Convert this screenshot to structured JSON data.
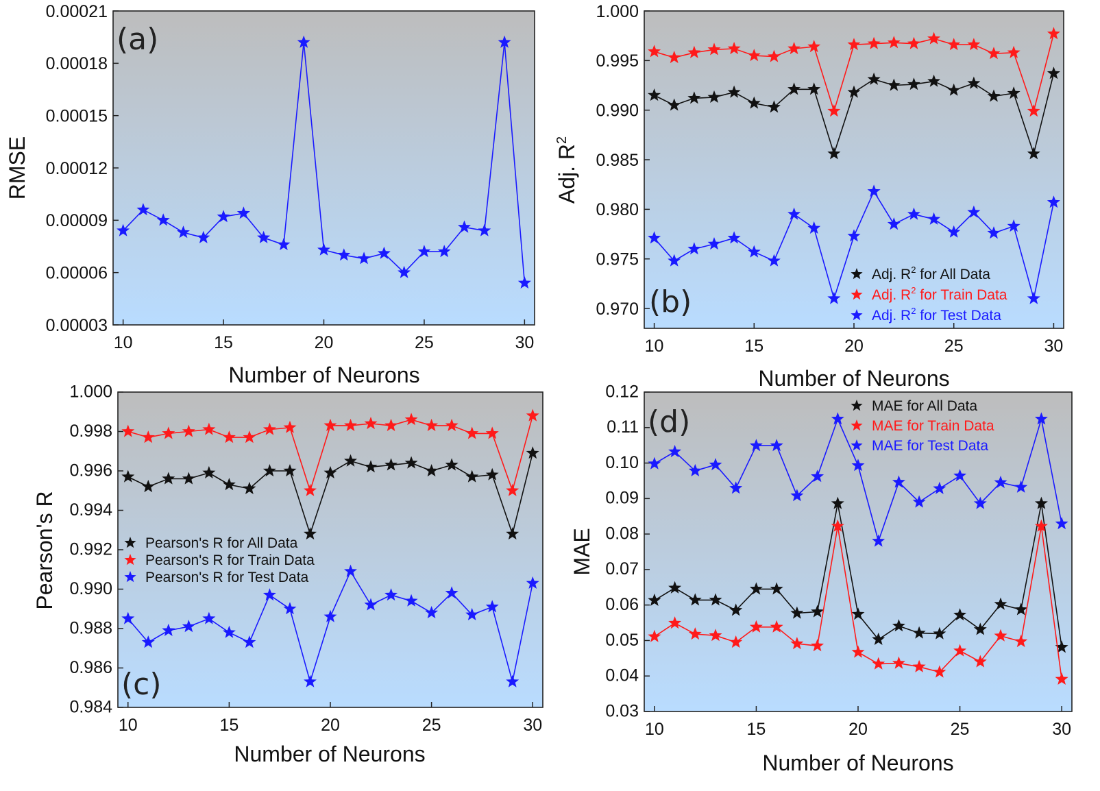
{
  "chart_data": [
    {
      "panel": "(a)",
      "type": "line",
      "xlabel": "Number of Neurons",
      "ylabel": "RMSE",
      "xlim": [
        9.5,
        30.5
      ],
      "ylim": [
        3e-05,
        0.00021
      ],
      "xticks": [
        10,
        15,
        20,
        25,
        30
      ],
      "xtick_labels": [
        "10",
        "15",
        "20",
        "25",
        "30"
      ],
      "yticks": [
        3e-05,
        6e-05,
        9e-05,
        0.00012,
        0.00015,
        0.00018,
        0.00021
      ],
      "ytick_labels": [
        "0.00003",
        "0.00006",
        "0.00009",
        "0.00012",
        "0.00015",
        "0.00018",
        "0.00021"
      ],
      "x": [
        10,
        11,
        12,
        13,
        14,
        15,
        16,
        17,
        18,
        19,
        20,
        21,
        22,
        23,
        24,
        25,
        26,
        27,
        28,
        29,
        30
      ],
      "series": [
        {
          "name": "RMSE",
          "color": "#1a1aff",
          "values": [
            8.4e-05,
            9.6e-05,
            9e-05,
            8.3e-05,
            8e-05,
            9.2e-05,
            9.4e-05,
            8e-05,
            7.6e-05,
            0.000192,
            7.3e-05,
            7e-05,
            6.8e-05,
            7.1e-05,
            6e-05,
            7.2e-05,
            7.2e-05,
            8.6e-05,
            8.4e-05,
            0.000192,
            5.4e-05
          ]
        }
      ],
      "legend": []
    },
    {
      "panel": "(b)",
      "type": "line",
      "xlabel": "Number of Neurons",
      "ylabel": "Adj. R",
      "ylabel_sup": "2",
      "xlim": [
        9.5,
        30.5
      ],
      "ylim": [
        0.968,
        1.0
      ],
      "xticks": [
        10,
        15,
        20,
        25,
        30
      ],
      "xtick_labels": [
        "10",
        "15",
        "20",
        "25",
        "30"
      ],
      "yticks": [
        0.97,
        0.975,
        0.98,
        0.985,
        0.99,
        0.995,
        1.0
      ],
      "ytick_labels": [
        "0.970",
        "0.975",
        "0.980",
        "0.985",
        "0.990",
        "0.995",
        "1.000"
      ],
      "x": [
        10,
        11,
        12,
        13,
        14,
        15,
        16,
        17,
        18,
        19,
        20,
        21,
        22,
        23,
        24,
        25,
        26,
        27,
        28,
        29,
        30
      ],
      "series": [
        {
          "name": "Adj. R² for All Data",
          "color": "#111111",
          "values": [
            0.9915,
            0.9905,
            0.9912,
            0.9913,
            0.9918,
            0.9907,
            0.9903,
            0.9921,
            0.9921,
            0.9856,
            0.9918,
            0.9931,
            0.9925,
            0.9926,
            0.9929,
            0.992,
            0.9927,
            0.9914,
            0.9917,
            0.9856,
            0.9937
          ]
        },
        {
          "name": "Adj. R² for Train Data",
          "color": "#ff1a1a",
          "values": [
            0.9959,
            0.9953,
            0.9958,
            0.9961,
            0.9962,
            0.9955,
            0.9954,
            0.9962,
            0.9964,
            0.9899,
            0.9966,
            0.9967,
            0.9968,
            0.9967,
            0.9972,
            0.9966,
            0.9966,
            0.9957,
            0.9958,
            0.9899,
            0.9977
          ]
        },
        {
          "name": "Adj. R² for Test Data",
          "color": "#1a1aff",
          "values": [
            0.9771,
            0.9748,
            0.976,
            0.9765,
            0.9771,
            0.9757,
            0.9748,
            0.9795,
            0.9781,
            0.971,
            0.9773,
            0.9818,
            0.9785,
            0.9795,
            0.979,
            0.9777,
            0.9797,
            0.9776,
            0.9783,
            0.971,
            0.9807
          ]
        }
      ],
      "legend": [
        {
          "prefix": "Adj. R",
          "sup": "2",
          "suffix": " for All Data",
          "color": "#111111"
        },
        {
          "prefix": "Adj. R",
          "sup": "2",
          "suffix": " for Train Data",
          "color": "#ff1a1a"
        },
        {
          "prefix": "Adj. R",
          "sup": "2",
          "suffix": " for Test Data",
          "color": "#1a1aff"
        }
      ]
    },
    {
      "panel": "(c)",
      "type": "line",
      "xlabel": "Number of Neurons",
      "ylabel": "Pearson's R",
      "xlim": [
        9.5,
        30.5
      ],
      "ylim": [
        0.984,
        1.0
      ],
      "xticks": [
        10,
        15,
        20,
        25,
        30
      ],
      "xtick_labels": [
        "10",
        "15",
        "20",
        "25",
        "30"
      ],
      "yticks": [
        0.984,
        0.986,
        0.988,
        0.99,
        0.992,
        0.994,
        0.996,
        0.998,
        1.0
      ],
      "ytick_labels": [
        "0.984",
        "0.986",
        "0.988",
        "0.990",
        "0.992",
        "0.994",
        "0.996",
        "0.998",
        "1.000"
      ],
      "x": [
        10,
        11,
        12,
        13,
        14,
        15,
        16,
        17,
        18,
        19,
        20,
        21,
        22,
        23,
        24,
        25,
        26,
        27,
        28,
        29,
        30
      ],
      "series": [
        {
          "name": "Pearson's R  for All Data",
          "color": "#111111",
          "values": [
            0.9957,
            0.9952,
            0.9956,
            0.9956,
            0.9959,
            0.9953,
            0.9951,
            0.996,
            0.996,
            0.9928,
            0.9959,
            0.9965,
            0.9962,
            0.9963,
            0.9964,
            0.996,
            0.9963,
            0.9957,
            0.9958,
            0.9928,
            0.9969
          ]
        },
        {
          "name": "Pearson's R  for Train Data",
          "color": "#ff1a1a",
          "values": [
            0.998,
            0.9977,
            0.9979,
            0.998,
            0.9981,
            0.9977,
            0.9977,
            0.9981,
            0.9982,
            0.995,
            0.9983,
            0.9983,
            0.9984,
            0.9983,
            0.9986,
            0.9983,
            0.9983,
            0.9979,
            0.9979,
            0.995,
            0.9988
          ]
        },
        {
          "name": "Pearson's R  for Test Data",
          "color": "#1a1aff",
          "values": [
            0.9885,
            0.9873,
            0.9879,
            0.9881,
            0.9885,
            0.9878,
            0.9873,
            0.9897,
            0.989,
            0.9853,
            0.9886,
            0.9909,
            0.9892,
            0.9897,
            0.9894,
            0.9888,
            0.9898,
            0.9887,
            0.9891,
            0.9853,
            0.9903
          ]
        }
      ],
      "legend": [
        {
          "prefix": "Pearson's R  for All Data",
          "sup": "",
          "suffix": "",
          "color": "#111111"
        },
        {
          "prefix": "Pearson's R  for Train Data",
          "sup": "",
          "suffix": "",
          "color": "#ff1a1a"
        },
        {
          "prefix": "Pearson's R  for Test Data",
          "sup": "",
          "suffix": "",
          "color": "#1a1aff"
        }
      ]
    },
    {
      "panel": "(d)",
      "type": "line",
      "xlabel": "Number of Neurons",
      "ylabel": "MAE",
      "xlim": [
        9.5,
        30.5
      ],
      "ylim": [
        0.03,
        0.12
      ],
      "xticks": [
        10,
        15,
        20,
        25,
        30
      ],
      "xtick_labels": [
        "10",
        "15",
        "20",
        "25",
        "30"
      ],
      "yticks": [
        0.03,
        0.04,
        0.05,
        0.06,
        0.07,
        0.08,
        0.09,
        0.1,
        0.11,
        0.12
      ],
      "ytick_labels": [
        "0.03",
        "0.04",
        "0.05",
        "0.06",
        "0.07",
        "0.08",
        "0.09",
        "0.10",
        "0.11",
        "0.12"
      ],
      "x": [
        10,
        11,
        12,
        13,
        14,
        15,
        16,
        17,
        18,
        19,
        20,
        21,
        22,
        23,
        24,
        25,
        26,
        27,
        28,
        29,
        30
      ],
      "series": [
        {
          "name": "MAE for All Data",
          "color": "#111111",
          "values": [
            0.0613,
            0.0648,
            0.0614,
            0.0614,
            0.0585,
            0.0645,
            0.0645,
            0.0577,
            0.0581,
            0.0886,
            0.0574,
            0.0503,
            0.0541,
            0.0521,
            0.0519,
            0.0572,
            0.0531,
            0.0602,
            0.0587,
            0.0886,
            0.0481
          ]
        },
        {
          "name": "MAE for Train Data",
          "color": "#ff1a1a",
          "values": [
            0.0511,
            0.0549,
            0.0518,
            0.0514,
            0.0495,
            0.0538,
            0.0538,
            0.0491,
            0.0485,
            0.0822,
            0.0467,
            0.0434,
            0.0436,
            0.0426,
            0.0411,
            0.0471,
            0.044,
            0.0513,
            0.0497,
            0.0822,
            0.0391
          ]
        },
        {
          "name": "MAE for Test Data",
          "color": "#1a1aff",
          "values": [
            0.0998,
            0.1032,
            0.0978,
            0.0995,
            0.0929,
            0.1049,
            0.1049,
            0.0908,
            0.0962,
            0.1124,
            0.0993,
            0.078,
            0.0946,
            0.089,
            0.0928,
            0.0964,
            0.0886,
            0.0945,
            0.0932,
            0.1124,
            0.0829
          ]
        }
      ],
      "legend": [
        {
          "prefix": "MAE for All Data",
          "sup": "",
          "suffix": "",
          "color": "#111111"
        },
        {
          "prefix": "MAE for Train Data",
          "sup": "",
          "suffix": "",
          "color": "#ff1a1a"
        },
        {
          "prefix": "MAE for Test Data",
          "sup": "",
          "suffix": "",
          "color": "#1a1aff"
        }
      ]
    }
  ]
}
